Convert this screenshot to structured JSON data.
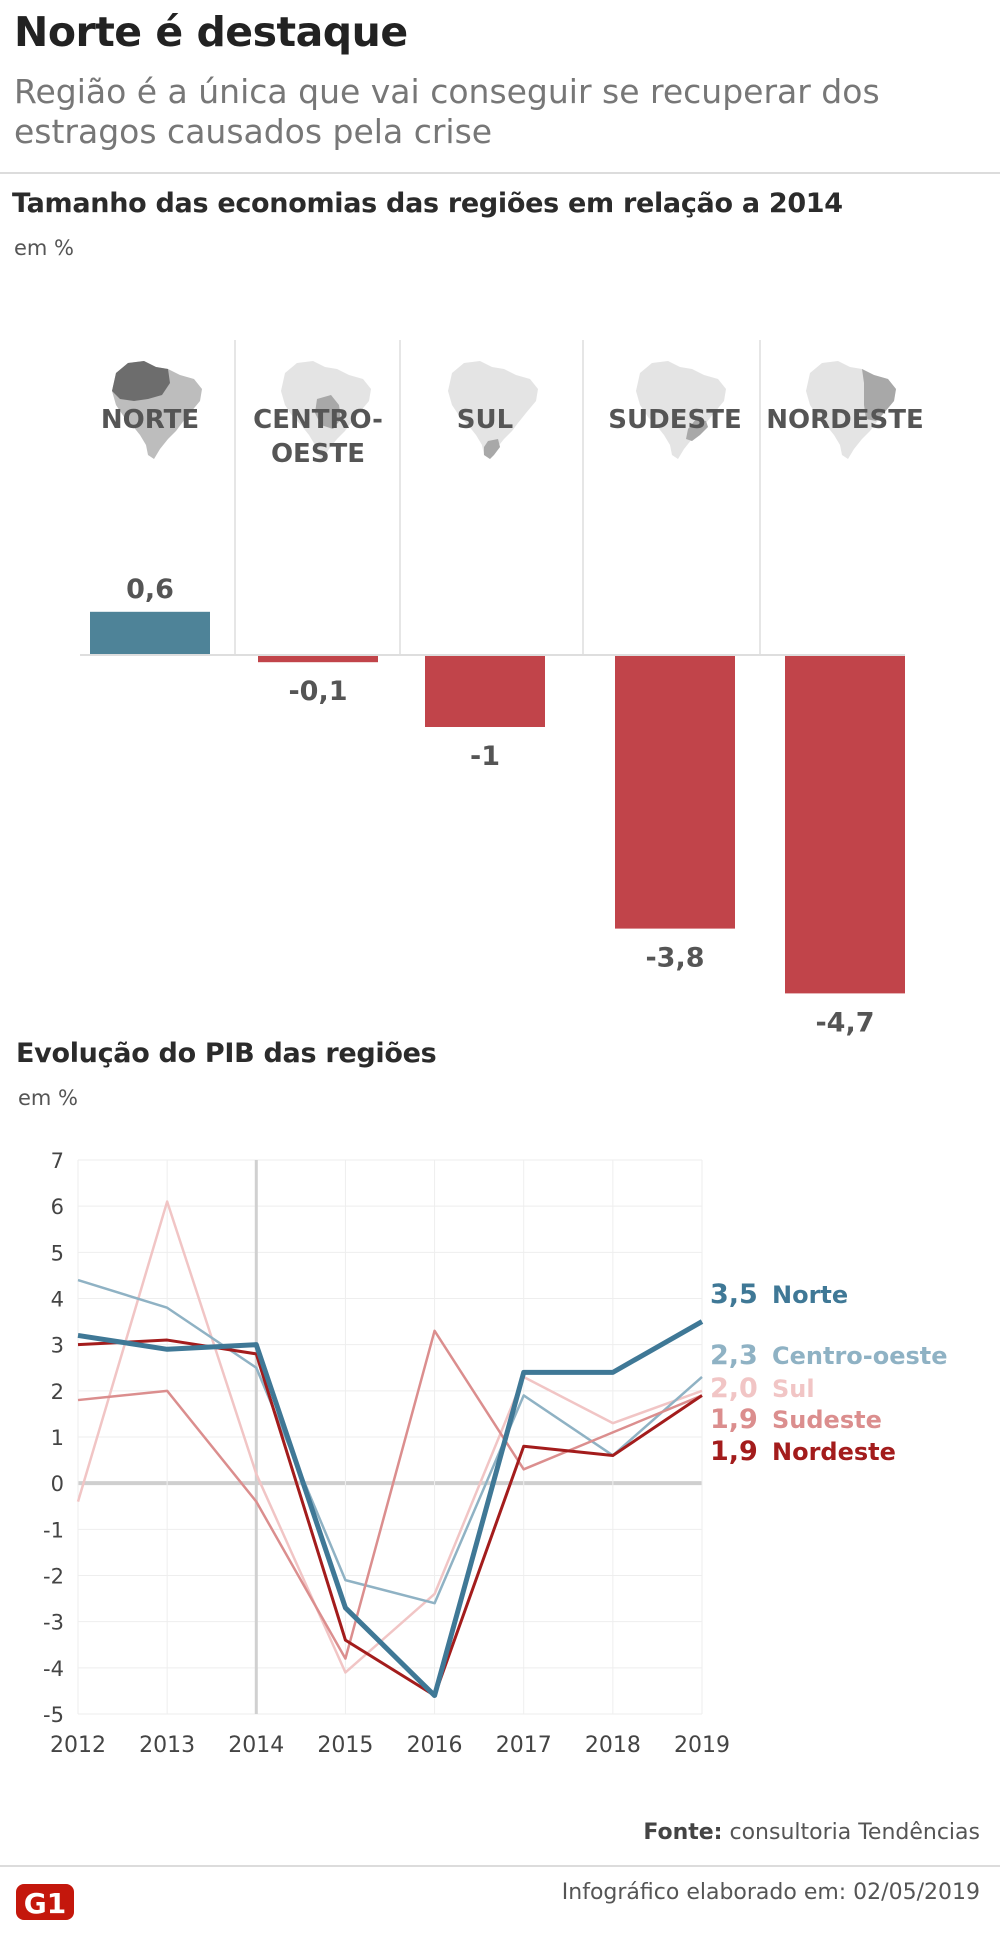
{
  "header": {
    "title": "Norte é destaque",
    "subtitle": "Região é a única que vai conseguir se recuperar dos estragos causados pela crise"
  },
  "colors": {
    "positive_bar": "#4e8398",
    "negative_bar": "#c1444a",
    "norte": "#3f7896",
    "centro_oeste": "#8fb2c4",
    "sul": "#f1c5c5",
    "sudeste": "#db8e8e",
    "nordeste": "#a31c1c"
  },
  "icons": [
    "brazil-map-norte-icon",
    "brazil-map-centro-oeste-icon",
    "brazil-map-sul-icon",
    "brazil-map-sudeste-icon",
    "brazil-map-nordeste-icon"
  ],
  "chart_data": [
    {
      "type": "bar",
      "title": "Tamanho das economias das regiões em relação a 2014",
      "unit": "em %",
      "categories": [
        "NORTE",
        "CENTRO-OESTE",
        "SUL",
        "SUDESTE",
        "NORDESTE"
      ],
      "values": [
        0.6,
        -0.1,
        -1,
        -3.8,
        -4.7
      ],
      "value_labels": [
        "0,6",
        "-0,1",
        "-1",
        "-3,8",
        "-4,7"
      ]
    },
    {
      "type": "line",
      "title": "Evolução do PIB das regiões",
      "unit": "em %",
      "x": [
        2012,
        2013,
        2014,
        2015,
        2016,
        2017,
        2018,
        2019
      ],
      "ylim": [
        -5,
        7
      ],
      "yticks": [
        7,
        6,
        5,
        4,
        3,
        2,
        1,
        0,
        -1,
        -2,
        -3,
        -4,
        -5
      ],
      "grid": true,
      "legend": "right",
      "series": [
        {
          "name": "Norte",
          "end_label": "3,5",
          "values": [
            3.2,
            2.9,
            3.0,
            -2.7,
            -4.6,
            2.4,
            2.4,
            3.5
          ]
        },
        {
          "name": "Centro-oeste",
          "end_label": "2,3",
          "values": [
            4.4,
            3.8,
            2.5,
            -2.1,
            -2.6,
            1.9,
            0.6,
            2.3
          ]
        },
        {
          "name": "Sul",
          "end_label": "2,0",
          "values": [
            -0.4,
            6.1,
            0.2,
            -4.1,
            -2.4,
            2.3,
            1.3,
            2.0
          ]
        },
        {
          "name": "Sudeste",
          "end_label": "1,9",
          "values": [
            1.8,
            2.0,
            -0.4,
            -3.8,
            3.3,
            0.3,
            1.1,
            1.9
          ]
        },
        {
          "name": "Nordeste",
          "end_label": "1,9",
          "values": [
            3.0,
            3.1,
            2.8,
            -3.4,
            -4.6,
            0.8,
            0.6,
            1.9
          ]
        }
      ]
    }
  ],
  "footer": {
    "source_label": "Fonte:",
    "source_value": "consultoria Tendências",
    "credit": "Infográfico elaborado em: 02/05/2019",
    "logo_text": "G1"
  }
}
